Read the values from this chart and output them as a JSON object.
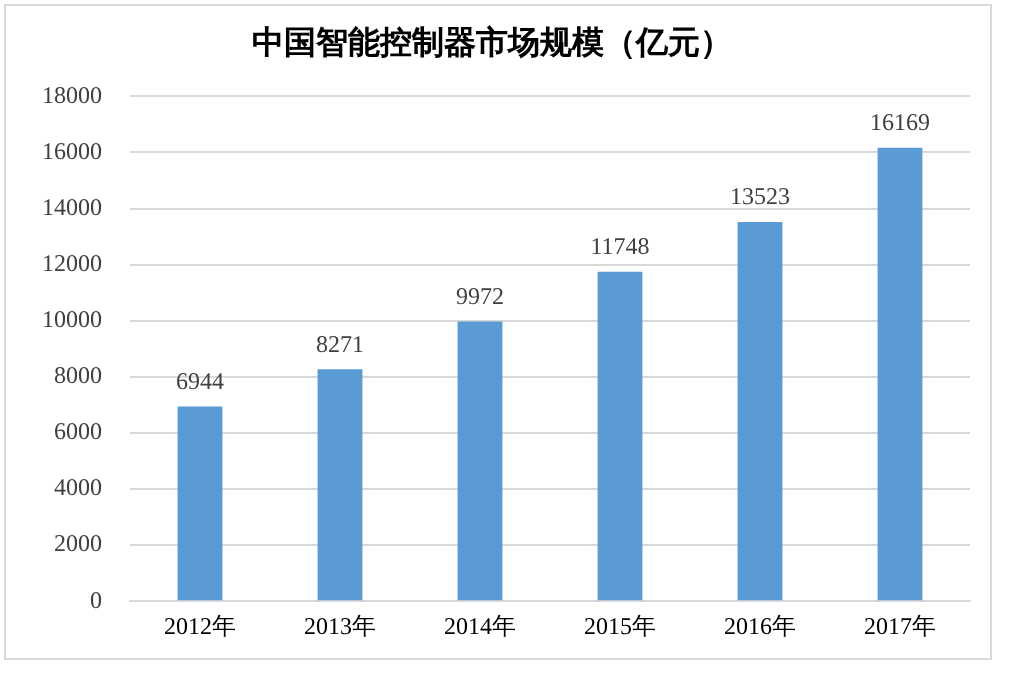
{
  "chart_data": {
    "type": "bar",
    "title": "中国智能控制器市场规模（亿元）",
    "categories": [
      "2012年",
      "2013年",
      "2014年",
      "2015年",
      "2016年",
      "2017年"
    ],
    "values": [
      6944,
      8271,
      9972,
      11748,
      13523,
      16169
    ],
    "color": "#5b9bd5",
    "ylim": [
      0,
      18000
    ],
    "yticks": [
      0,
      2000,
      4000,
      6000,
      8000,
      10000,
      12000,
      14000,
      16000,
      18000
    ],
    "grid": "y",
    "data_labels": true,
    "legend": false
  }
}
